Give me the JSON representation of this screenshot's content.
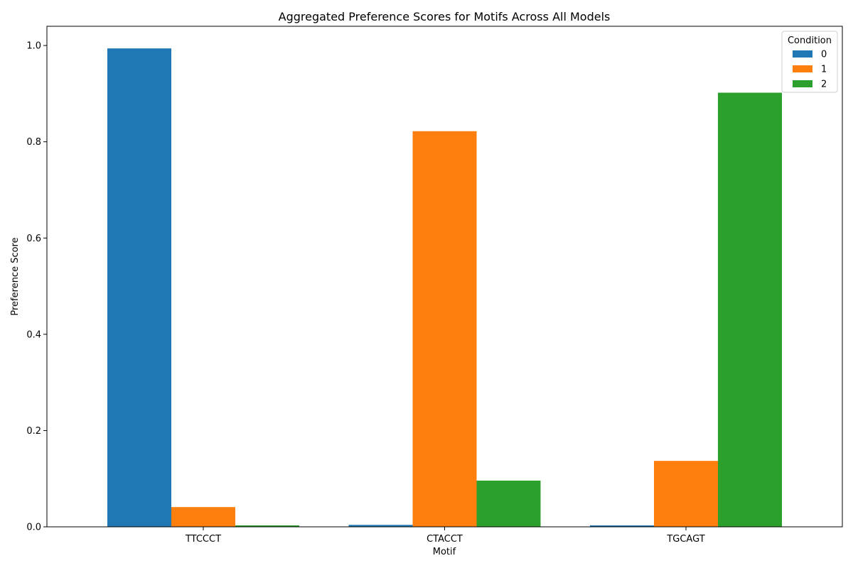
{
  "chart_data": {
    "type": "bar",
    "title": "Aggregated Preference Scores for Motifs Across All Models",
    "xlabel": "Motif",
    "ylabel": "Preference Score",
    "categories": [
      "TTCCCT",
      "CTACCT",
      "TGCAGT"
    ],
    "series": [
      {
        "name": "0",
        "color": "#1f77b4",
        "values": [
          0.994,
          0.004,
          0.003
        ]
      },
      {
        "name": "1",
        "color": "#ff7f0e",
        "values": [
          0.041,
          0.822,
          0.137
        ]
      },
      {
        "name": "2",
        "color": "#2ca02c",
        "values": [
          0.003,
          0.096,
          0.902
        ]
      }
    ],
    "ylim": [
      0,
      1.04
    ],
    "yticks": [
      "0.0",
      "0.2",
      "0.4",
      "0.6",
      "0.8",
      "1.0"
    ],
    "legend": {
      "title": "Condition",
      "placement": "top-right"
    },
    "grid": false
  }
}
